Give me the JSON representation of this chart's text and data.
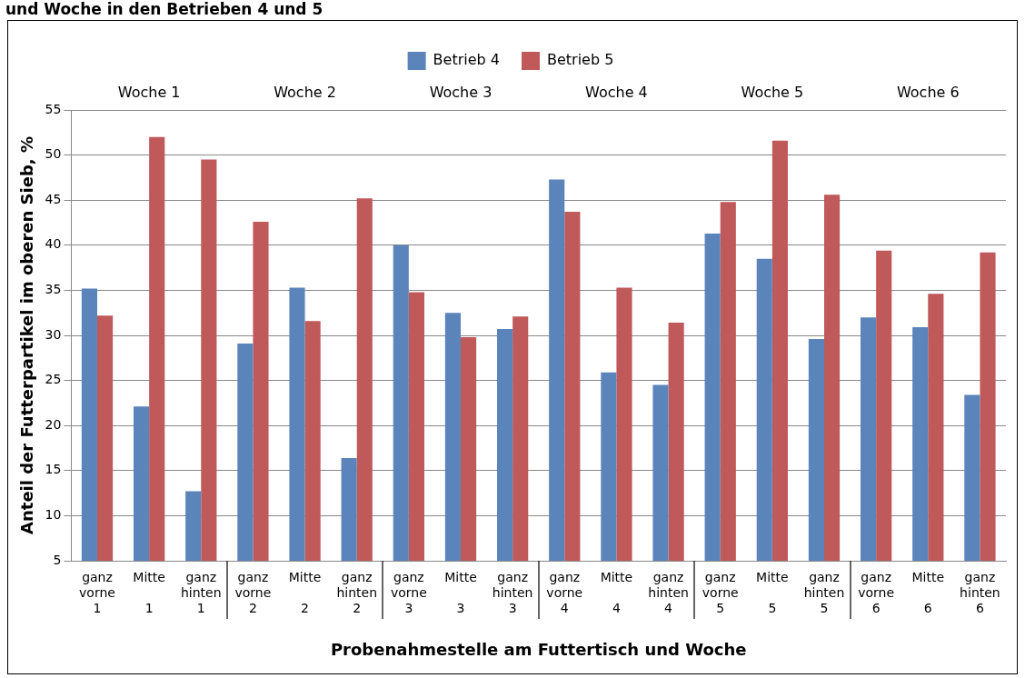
{
  "chart_data": {
    "type": "bar",
    "title": "und Woche in den Betrieben 4 und 5",
    "xlabel": "Probenahmestelle am Futtertisch und Woche",
    "ylabel": "Anteil der Futterpartikel im oberen Sieb, %",
    "categories": [
      "ganz vorne\n1",
      "Mitte\n1",
      "ganz hinten\n1",
      "ganz vorne\n2",
      "Mitte\n2",
      "ganz hinten\n2",
      "ganz vorne\n3",
      "Mitte\n3",
      "ganz hinten\n3",
      "ganz vorne\n4",
      "Mitte\n4",
      "ganz hinten\n4",
      "ganz vorne\n5",
      "Mitte\n5",
      "ganz hinten\n5",
      "ganz vorne\n6",
      "Mitte\n6",
      "ganz hinten\n6"
    ],
    "series": [
      {
        "name": "Betrieb 4",
        "color": "#5b84bb",
        "values": [
          35.2,
          22.1,
          12.7,
          29.1,
          35.3,
          16.4,
          40.0,
          32.5,
          30.7,
          47.3,
          25.9,
          24.5,
          41.3,
          38.5,
          29.6,
          32.0,
          30.9,
          23.4
        ]
      },
      {
        "name": "Betrieb 5",
        "color": "#c0595a",
        "values": [
          32.2,
          52.0,
          49.5,
          42.6,
          31.6,
          45.2,
          34.8,
          29.8,
          32.1,
          43.7,
          35.3,
          31.4,
          44.8,
          51.6,
          45.6,
          39.4,
          34.6,
          39.2
        ]
      }
    ],
    "annotations": [
      "Woche 1",
      "Woche 2",
      "Woche 3",
      "Woche 4",
      "Woche 5",
      "Woche 6"
    ],
    "ylim": [
      5,
      55
    ],
    "yticks": [
      5,
      10,
      15,
      20,
      25,
      30,
      35,
      40,
      45,
      50,
      55
    ],
    "grid": "y",
    "legend": "top"
  }
}
